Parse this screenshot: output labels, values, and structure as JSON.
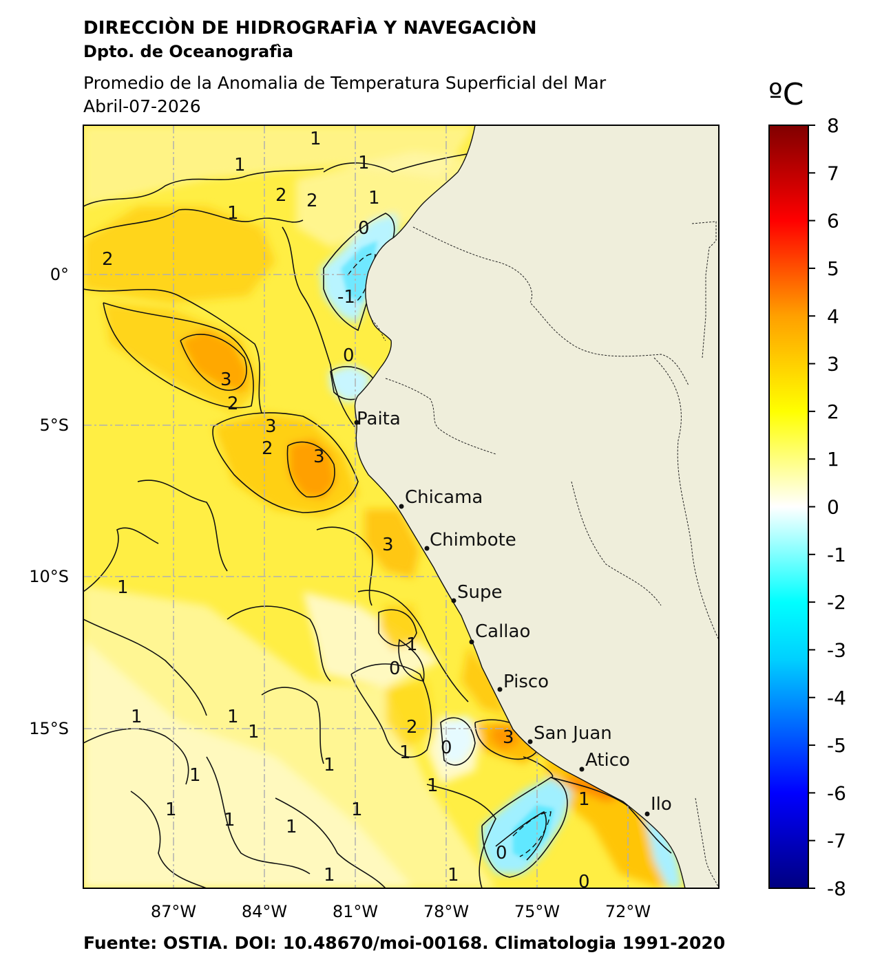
{
  "header": {
    "organization": "DIRECCIÒN DE HIDROGRAFÌA Y NAVEGACIÒN",
    "department": "Dpto. de Oceanografìa",
    "title": "Promedio de la Anomalia de Temperatura Superficial del Mar",
    "date": "Abril-07-2026"
  },
  "colorbar": {
    "unit": "ºC",
    "ticks": [
      "8",
      "7",
      "6",
      "5",
      "4",
      "3",
      "2",
      "1",
      "0",
      "-1",
      "-2",
      "-3",
      "-4",
      "-5",
      "-6",
      "-7",
      "-8"
    ],
    "range": [
      -8,
      8
    ],
    "colors": [
      "#000080",
      "#0000ff",
      "#00ffff",
      "#ffffff",
      "#ffff00",
      "#ff0000",
      "#800000"
    ]
  },
  "map": {
    "lon_labels": [
      "87°W",
      "84°W",
      "81°W",
      "78°W",
      "75°W",
      "72°W"
    ],
    "lat_labels": [
      "0°",
      "5°S",
      "10°S",
      "15°S"
    ],
    "land_color": "#efeedb",
    "ocean_base_color": "#ffee44",
    "ports": [
      {
        "name": "Paita",
        "lon": -81.1,
        "lat": -5.1
      },
      {
        "name": "Chicama",
        "lon": -79.5,
        "lat": -7.8
      },
      {
        "name": "Chimbote",
        "lon": -78.6,
        "lat": -9.1
      },
      {
        "name": "Supe",
        "lon": -77.7,
        "lat": -10.8
      },
      {
        "name": "Callao",
        "lon": -77.1,
        "lat": -12.05
      },
      {
        "name": "Pisco",
        "lon": -76.2,
        "lat": -13.7
      },
      {
        "name": "San Juan",
        "lon": -75.2,
        "lat": -15.35
      },
      {
        "name": "Atico",
        "lon": -73.7,
        "lat": -16.2
      },
      {
        "name": "Ilo",
        "lon": -71.3,
        "lat": -17.6
      }
    ],
    "contour_labels": [
      "1",
      "2",
      "3",
      "0",
      "-1"
    ]
  },
  "footer": {
    "source": "Fuente: OSTIA. DOI: 10.48670/moi-00168. Climatologia 1991-2020"
  }
}
